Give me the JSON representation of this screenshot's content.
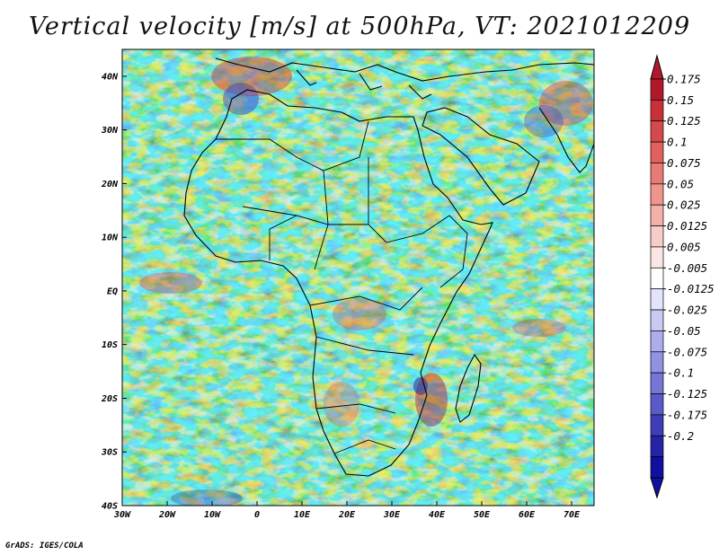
{
  "title": "Vertical velocity [m/s] at 500hPa, VT: 2021012209",
  "footer": "GrADS: IGES/COLA",
  "map": {
    "lon_range": [
      -30,
      75
    ],
    "lat_range": [
      -40,
      45
    ],
    "lon_ticks": [
      "30W",
      "20W",
      "10W",
      "0",
      "10E",
      "20E",
      "30E",
      "40E",
      "50E",
      "60E",
      "70E"
    ],
    "lon_values": [
      -30,
      -20,
      -10,
      0,
      10,
      20,
      30,
      40,
      50,
      60,
      70
    ],
    "lat_ticks": [
      "40N",
      "30N",
      "20N",
      "10N",
      "EQ",
      "10S",
      "20S",
      "30S",
      "40S"
    ],
    "lat_values": [
      40,
      30,
      20,
      10,
      0,
      -10,
      -20,
      -30,
      -40
    ]
  },
  "colorbar": {
    "labels": [
      "0.175",
      "0.15",
      "0.125",
      "0.1",
      "0.075",
      "0.05",
      "0.025",
      "0.0125",
      "0.005",
      "-0.005",
      "-0.0125",
      "-0.025",
      "-0.05",
      "-0.075",
      "-0.1",
      "-0.125",
      "-0.175",
      "-0.2"
    ],
    "colors": [
      "#b2182b",
      "#c8303a",
      "#d6494a",
      "#e0615e",
      "#e87b74",
      "#ef958d",
      "#f4b1aa",
      "#f8cdc8",
      "#fbe6e3",
      "#ffffff",
      "#e3e3fb",
      "#c9c9f4",
      "#adadec",
      "#9292e2",
      "#7676d6",
      "#5a5ac8",
      "#3e3eb8",
      "#2424a6",
      "#1010a0"
    ]
  }
}
